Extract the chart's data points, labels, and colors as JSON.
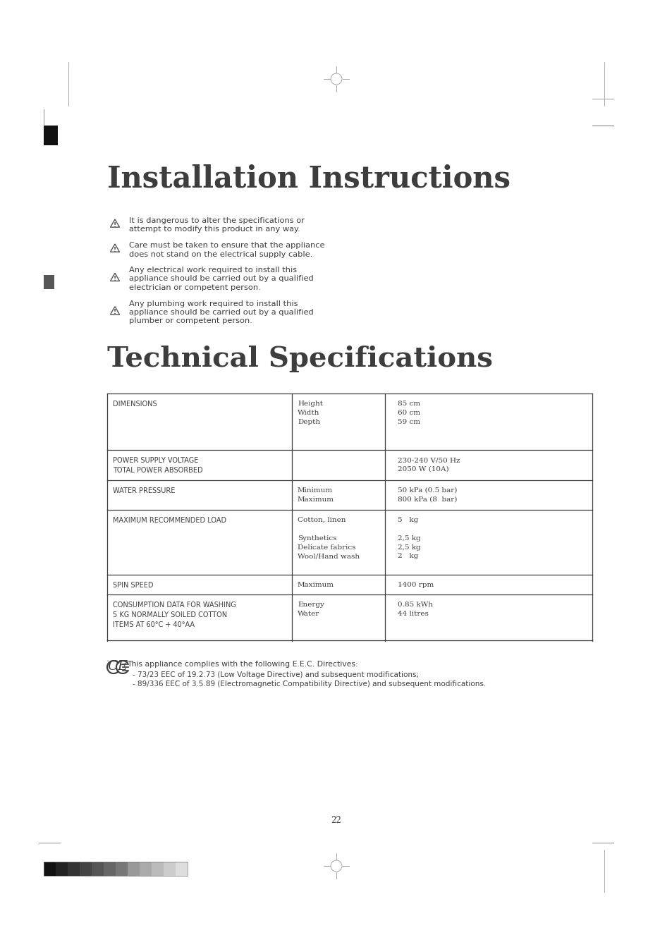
{
  "title1": "Installation Instructions",
  "title2": "Technical Specifications",
  "warnings": [
    [
      "It is dangerous to alter the specifications or",
      "attempt to modify this product in any way."
    ],
    [
      "Care must be taken to ensure that the appliance",
      "does not stand on the electrical supply cable."
    ],
    [
      "Any electrical work required to install this",
      "appliance should be carried out by a qualified",
      "electrician or competent person."
    ],
    [
      "Any plumbing work required to install this",
      "appliance should be carried out by a qualified",
      "plumber or competent person."
    ]
  ],
  "table_rows": [
    {
      "col1": "DIMENSIONS",
      "col2": [
        "Height",
        "Width",
        "Depth"
      ],
      "col3": [
        "85 cm",
        "60 cm",
        "59 cm"
      ]
    },
    {
      "col1": "POWER SUPPLY VOLTAGE\nTOTAL POWER ABSORBED",
      "col2": [],
      "col3": [
        "230-240 V/50 Hz",
        "2050 W (10A)"
      ]
    },
    {
      "col1": "WATER PRESSURE",
      "col2": [
        "Minimum",
        "Maximum"
      ],
      "col3": [
        "50 kPa (0.5 bar)",
        "800 kPa (8  bar)"
      ]
    },
    {
      "col1": "MAXIMUM RECOMMENDED LOAD",
      "col2": [
        "Cotton, linen",
        "",
        "Synthetics",
        "Delicate fabrics",
        "Wool/Hand wash"
      ],
      "col3": [
        "5   kg",
        "",
        "2,5 kg",
        "2,5 kg",
        "2   kg"
      ]
    },
    {
      "col1": "SPIN SPEED",
      "col2": [
        "Maximum"
      ],
      "col3": [
        "1400 rpm"
      ]
    },
    {
      "col1": "CONSUMPTION DATA FOR WASHING\n5 KG NORMALLY SOILED COTTON\nITEMS AT 60°C + 40°AA",
      "col2": [
        "Energy",
        "Water"
      ],
      "col3": [
        "0.85 kWh",
        "44 litres"
      ]
    }
  ],
  "ce_text": "This appliance complies with the following E.E.C. Directives:",
  "ce_bullets": [
    "- 73/23 EEC of 19.2.73 (Low Voltage Directive) and subsequent modifications;",
    "- 89/336 EEC of 3.5.89 (Electromagnetic Compatibility Directive) and subsequent modifications."
  ],
  "page_number": "22",
  "bg_color": "#ffffff",
  "text_color": "#3d3d3d",
  "title_color": "#3d3d3d",
  "table_border_color": "#3d3d3d",
  "marker_black": "#111111",
  "gray_mid": "#666666"
}
